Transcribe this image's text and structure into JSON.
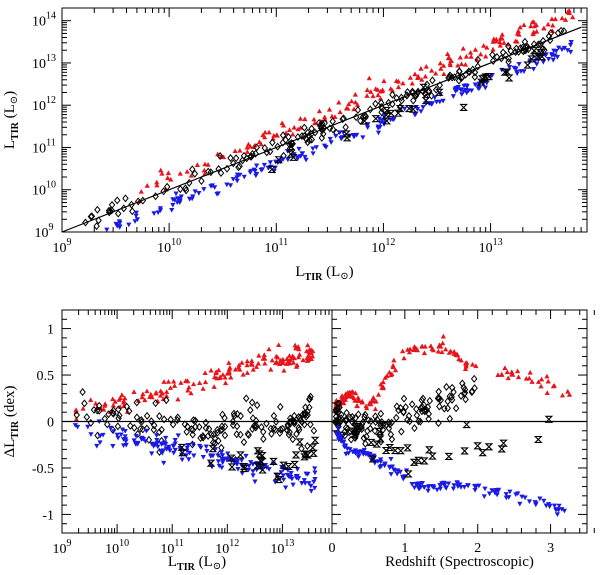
{
  "chart_data": [
    {
      "type": "scatter",
      "panel": "top",
      "xlabel": {
        "main": "L",
        "sub": "TIR",
        "unit": "(L",
        "unit_close": ")"
      },
      "ylabel": {
        "main": "L",
        "sub": "TIR",
        "unit": "(L",
        "unit_close": ")"
      },
      "x_axis": {
        "scale": "log",
        "range_exp": [
          9,
          13.9
        ],
        "tick_exponents": [
          9,
          10,
          11,
          12,
          13
        ],
        "tick_base": "10"
      },
      "y_axis": {
        "scale": "log",
        "range_exp": [
          9,
          14.3
        ],
        "tick_exponents": [
          9,
          10,
          11,
          12,
          13,
          14
        ],
        "tick_base": "10"
      },
      "reference_line": {
        "label": "one-to-one",
        "from_exp": [
          9,
          9
        ],
        "to_exp": [
          13.85,
          13.85
        ]
      },
      "series": [
        {
          "name": "red triangles",
          "marker": "triangle-up",
          "color": "#e8141a",
          "offset_mean": 0.42,
          "offset_spread": 0.22,
          "x_range": [
            9.7,
            13.8
          ],
          "count": 170
        },
        {
          "name": "black diamonds",
          "marker": "diamond",
          "color": "#000000",
          "offset_mean": 0.0,
          "offset_spread": 0.2,
          "x_range": [
            9.2,
            13.7
          ],
          "count": 190
        },
        {
          "name": "blue triangles",
          "marker": "triangle-down",
          "color": "#1a1ae6",
          "offset_mean": -0.38,
          "offset_spread": 0.15,
          "x_range": [
            9.4,
            13.8
          ],
          "count": 200
        },
        {
          "name": "black crosses",
          "marker": "bowtie",
          "color": "#000000",
          "offset_mean": -0.3,
          "offset_spread": 0.25,
          "x_range": [
            10.8,
            13.5
          ],
          "count": 35
        }
      ]
    },
    {
      "type": "scatter",
      "panel": "bottom-left",
      "xlabel": {
        "main": "L",
        "sub": "TIR",
        "unit": "(L",
        "unit_close": ")"
      },
      "ylabel": {
        "main": "ΔL",
        "sub": "TIR",
        "unit": "(dex)"
      },
      "x_axis": {
        "scale": "log",
        "range_exp": [
          9,
          13.9
        ],
        "tick_exponents": [
          9,
          10,
          11,
          12,
          13
        ],
        "tick_base": "10"
      },
      "y_axis": {
        "scale": "linear",
        "range": [
          -1.2,
          1.2
        ],
        "tick_labels": [
          "-1",
          "-0.5",
          "0",
          "0.5",
          "1"
        ],
        "tick_values": [
          -1,
          -0.5,
          0,
          0.5,
          1
        ]
      },
      "reference_line": {
        "label": "zero",
        "y": 0
      },
      "series": [
        {
          "name": "red triangles",
          "marker": "triangle-up",
          "color": "#e8141a",
          "trend": [
            [
              9.2,
              0.12
            ],
            [
              10.5,
              0.25
            ],
            [
              11.5,
              0.4
            ],
            [
              12.5,
              0.62
            ],
            [
              13.6,
              0.75
            ]
          ],
          "spread": 0.1,
          "count": 150
        },
        {
          "name": "black diamonds",
          "marker": "diamond",
          "color": "#000000",
          "trend": [
            [
              9.2,
              0.1
            ],
            [
              10.5,
              0.0
            ],
            [
              11.5,
              -0.05
            ],
            [
              12.5,
              -0.05
            ],
            [
              13.6,
              0.05
            ]
          ],
          "spread": 0.18,
          "count": 160
        },
        {
          "name": "blue triangles",
          "marker": "triangle-down",
          "color": "#1a1ae6",
          "trend": [
            [
              9.2,
              -0.1
            ],
            [
              10.5,
              -0.2
            ],
            [
              11.5,
              -0.35
            ],
            [
              12.5,
              -0.5
            ],
            [
              13.6,
              -0.65
            ]
          ],
          "spread": 0.1,
          "count": 170
        },
        {
          "name": "black crosses",
          "marker": "bowtie",
          "color": "#000000",
          "trend": [
            [
              11.0,
              -0.3
            ],
            [
              12.0,
              -0.4
            ],
            [
              13.0,
              -0.5
            ],
            [
              13.6,
              -0.2
            ]
          ],
          "spread": 0.15,
          "count": 30
        }
      ]
    },
    {
      "type": "scatter",
      "panel": "bottom-right",
      "xlabel": {
        "main": "Redshift (Spectroscopic)"
      },
      "x_axis": {
        "scale": "linear",
        "range": [
          0,
          3.5
        ],
        "tick_labels": [
          "0",
          "1",
          "2",
          "3"
        ],
        "tick_values": [
          0,
          1,
          2,
          3
        ]
      },
      "y_axis": {
        "scale": "linear",
        "range": [
          -1.2,
          1.2
        ],
        "tick_values": [
          -1,
          -0.5,
          0,
          0.5,
          1
        ]
      },
      "reference_line": {
        "label": "zero",
        "y": 0
      },
      "series": [
        {
          "name": "red triangles",
          "marker": "triangle-up",
          "color": "#e8141a",
          "trend": [
            [
              0.05,
              0.15
            ],
            [
              0.25,
              0.3
            ],
            [
              0.45,
              0.15
            ],
            [
              0.6,
              0.25
            ],
            [
              0.75,
              0.5
            ],
            [
              1.0,
              0.75
            ],
            [
              1.3,
              0.82
            ],
            [
              1.6,
              0.78
            ],
            [
              2.0,
              0.55
            ],
            [
              2.6,
              0.5
            ],
            [
              3.3,
              0.3
            ]
          ],
          "spread": 0.06,
          "count": 150
        },
        {
          "name": "black diamonds",
          "marker": "diamond",
          "color": "#000000",
          "trend": [
            [
              0.05,
              0.1
            ],
            [
              0.3,
              -0.1
            ],
            [
              0.5,
              -0.05
            ],
            [
              0.8,
              0.0
            ],
            [
              1.2,
              0.1
            ],
            [
              1.6,
              0.2
            ],
            [
              2.0,
              0.45
            ]
          ],
          "spread": 0.15,
          "count": 140
        },
        {
          "name": "blue triangles",
          "marker": "triangle-down",
          "color": "#1a1ae6",
          "trend": [
            [
              0.05,
              -0.1
            ],
            [
              0.25,
              -0.35
            ],
            [
              0.45,
              -0.35
            ],
            [
              0.7,
              -0.45
            ],
            [
              1.0,
              -0.6
            ],
            [
              1.3,
              -0.72
            ],
            [
              1.7,
              -0.68
            ],
            [
              2.2,
              -0.75
            ],
            [
              3.3,
              -0.98
            ]
          ],
          "spread": 0.05,
          "count": 160
        },
        {
          "name": "black crosses",
          "marker": "bowtie",
          "color": "#000000",
          "trend": [
            [
              0.3,
              -0.15
            ],
            [
              0.8,
              -0.3
            ],
            [
              1.2,
              -0.45
            ],
            [
              1.8,
              -0.2
            ],
            [
              2.6,
              -0.3
            ],
            [
              3.3,
              0.15
            ]
          ],
          "spread": 0.12,
          "count": 30
        }
      ]
    }
  ],
  "labels": {
    "sun_symbol": "⊙"
  }
}
